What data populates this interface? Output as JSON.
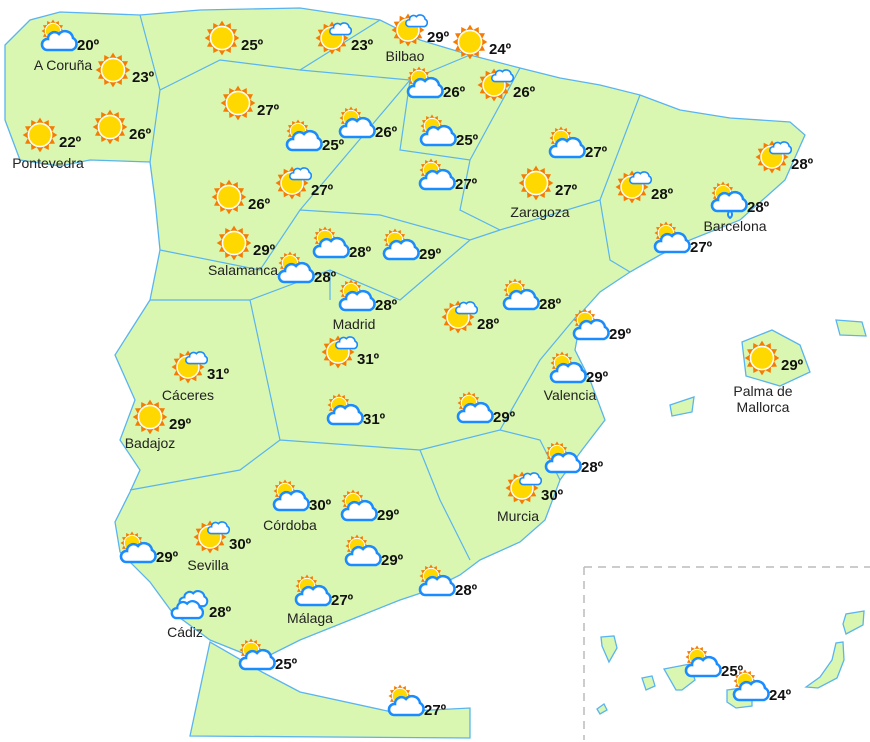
{
  "map": {
    "colors": {
      "land": "#d9f7b0",
      "border": "#5ab4ef",
      "cloud_outline": "#1a8cff",
      "sun": "#ffd800",
      "sun_rays": "#f57c00"
    },
    "markers": [
      {
        "icon": "cloud-sun",
        "temp": "20º",
        "city": "A Coruña"
      },
      {
        "icon": "sun",
        "temp": "23º",
        "city": ""
      },
      {
        "icon": "sun",
        "temp": "22º",
        "city": "Pontevedra"
      },
      {
        "icon": "sun",
        "temp": "26º",
        "city": ""
      },
      {
        "icon": "sun",
        "temp": "25º",
        "city": ""
      },
      {
        "icon": "sun-cloud",
        "temp": "23º",
        "city": ""
      },
      {
        "icon": "sun-cloud",
        "temp": "29º",
        "city": "Bilbao"
      },
      {
        "icon": "sun",
        "temp": "24º",
        "city": ""
      },
      {
        "icon": "cloud-sun",
        "temp": "26º",
        "city": ""
      },
      {
        "icon": "sun-cloud",
        "temp": "26º",
        "city": ""
      },
      {
        "icon": "sun",
        "temp": "27º",
        "city": ""
      },
      {
        "icon": "cloud-sun",
        "temp": "25º",
        "city": ""
      },
      {
        "icon": "cloud-sun",
        "temp": "26º",
        "city": ""
      },
      {
        "icon": "cloud-sun",
        "temp": "25º",
        "city": ""
      },
      {
        "icon": "cloud-sun",
        "temp": "27º",
        "city": ""
      },
      {
        "icon": "cloud-sun",
        "temp": "27º",
        "city": ""
      },
      {
        "icon": "sun",
        "temp": "26º",
        "city": ""
      },
      {
        "icon": "sun-cloud",
        "temp": "27º",
        "city": ""
      },
      {
        "icon": "sun",
        "temp": "27º",
        "city": "Zaragoza"
      },
      {
        "icon": "sun-cloud",
        "temp": "28º",
        "city": ""
      },
      {
        "icon": "sun-cloud",
        "temp": "28º",
        "city": ""
      },
      {
        "icon": "cloud-drizzle",
        "temp": "28º",
        "city": "Barcelona"
      },
      {
        "icon": "cloud-sun",
        "temp": "27º",
        "city": ""
      },
      {
        "icon": "sun",
        "temp": "29º",
        "city": "Salamanca"
      },
      {
        "icon": "cloud-sun",
        "temp": "28º",
        "city": ""
      },
      {
        "icon": "cloud-sun",
        "temp": "29º",
        "city": ""
      },
      {
        "icon": "cloud-sun",
        "temp": "28º",
        "city": ""
      },
      {
        "icon": "cloud-sun",
        "temp": "28º",
        "city": "Madrid"
      },
      {
        "icon": "cloud-sun",
        "temp": "28º",
        "city": ""
      },
      {
        "icon": "sun-cloud",
        "temp": "28º",
        "city": ""
      },
      {
        "icon": "cloud-sun",
        "temp": "29º",
        "city": ""
      },
      {
        "icon": "sun-cloud",
        "temp": "31º",
        "city": "Cáceres"
      },
      {
        "icon": "sun-cloud",
        "temp": "31º",
        "city": ""
      },
      {
        "icon": "sun",
        "temp": "29º",
        "city": "Palma de Mallorca"
      },
      {
        "icon": "cloud-sun",
        "temp": "29º",
        "city": "Valencia"
      },
      {
        "icon": "sun",
        "temp": "29º",
        "city": "Badajoz"
      },
      {
        "icon": "cloud-sun",
        "temp": "31º",
        "city": ""
      },
      {
        "icon": "cloud-sun",
        "temp": "29º",
        "city": ""
      },
      {
        "icon": "cloud-sun",
        "temp": "28º",
        "city": ""
      },
      {
        "icon": "sun-cloud",
        "temp": "30º",
        "city": "Murcia"
      },
      {
        "icon": "cloud-sun",
        "temp": "30º",
        "city": "Córdoba"
      },
      {
        "icon": "cloud-sun",
        "temp": "29º",
        "city": ""
      },
      {
        "icon": "sun-cloud",
        "temp": "30º",
        "city": "Sevilla"
      },
      {
        "icon": "cloud-sun",
        "temp": "29º",
        "city": ""
      },
      {
        "icon": "cloud-sun",
        "temp": "29º",
        "city": ""
      },
      {
        "icon": "cloud-sun",
        "temp": "28º",
        "city": ""
      },
      {
        "icon": "cloud-sun",
        "temp": "27º",
        "city": "Málaga"
      },
      {
        "icon": "cloud",
        "temp": "28º",
        "city": "Cádiz"
      },
      {
        "icon": "cloud-sun",
        "temp": "25º",
        "city": ""
      },
      {
        "icon": "cloud-sun",
        "temp": "27º",
        "city": ""
      },
      {
        "icon": "cloud-sun",
        "temp": "25º",
        "city": ""
      },
      {
        "icon": "cloud-sun",
        "temp": "24º",
        "city": ""
      }
    ]
  }
}
